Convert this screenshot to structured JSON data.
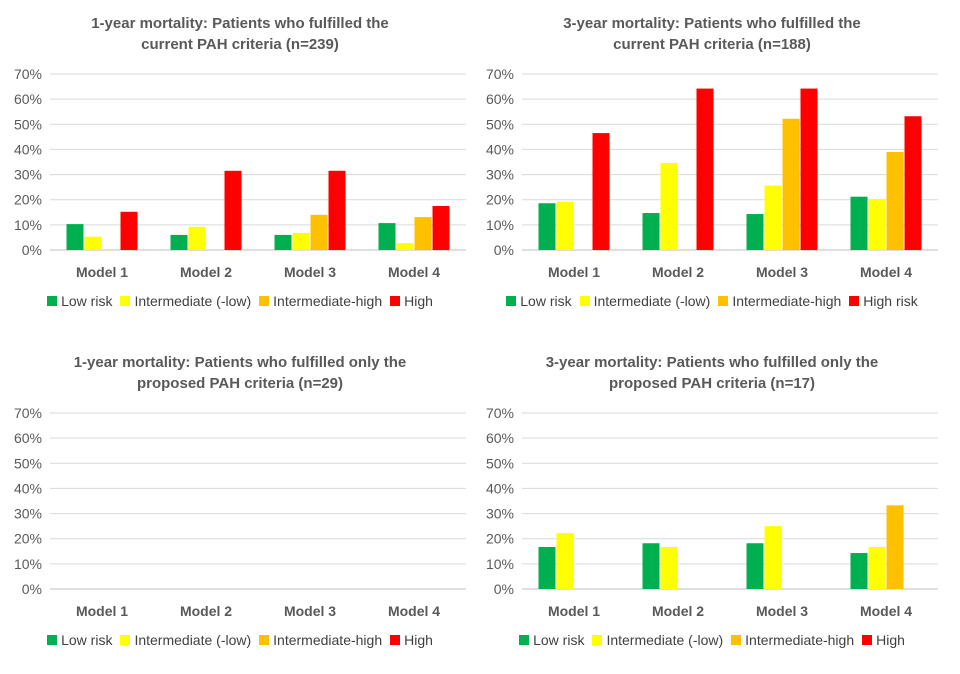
{
  "colors": {
    "low": "#00B050",
    "intermediate_low": "#FFFF00",
    "intermediate_high": "#FFC000",
    "high": "#FF0000",
    "grid": "#D9D9D9",
    "text": "#595959"
  },
  "chart_data": [
    {
      "type": "bar",
      "title": [
        "1-year mortality: Patients who fulfilled the",
        "current PAH criteria (n=239)"
      ],
      "categories": [
        "Model 1",
        "Model 2",
        "Model 3",
        "Model 4"
      ],
      "yticks": [
        "0%",
        "10%",
        "20%",
        "30%",
        "40%",
        "50%",
        "60%",
        "70%"
      ],
      "ylim": [
        0,
        70
      ],
      "series": [
        {
          "name": "Low risk",
          "color": "#00B050",
          "values": [
            10.3,
            6.0,
            6.0,
            10.7
          ]
        },
        {
          "name": "Intermediate (-low)",
          "color": "#FFFF00",
          "values": [
            5.3,
            9.2,
            6.8,
            2.7
          ]
        },
        {
          "name": "Intermediate-high",
          "color": "#FFC000",
          "values": [
            null,
            null,
            14.0,
            13.1
          ]
        },
        {
          "name": "High",
          "color": "#FF0000",
          "values": [
            15.2,
            31.5,
            31.5,
            17.5
          ]
        }
      ],
      "legend": [
        "Low risk",
        "Intermediate (-low)",
        "Intermediate-high",
        "High"
      ],
      "grid": true,
      "legend_position": "bottom"
    },
    {
      "type": "bar",
      "title": [
        "3-year mortality: Patients who fulfilled the",
        "current PAH criteria (n=188)"
      ],
      "categories": [
        "Model 1",
        "Model 2",
        "Model 3",
        "Model 4"
      ],
      "yticks": [
        "0%",
        "10%",
        "20%",
        "30%",
        "40%",
        "50%",
        "60%",
        "70%"
      ],
      "ylim": [
        0,
        70
      ],
      "series": [
        {
          "name": "Low risk",
          "color": "#00B050",
          "values": [
            18.6,
            14.7,
            14.3,
            21.2
          ]
        },
        {
          "name": "Intermediate (-low)",
          "color": "#FFFF00",
          "values": [
            19.2,
            34.6,
            25.6,
            20.2
          ]
        },
        {
          "name": "Intermediate-high",
          "color": "#FFC000",
          "values": [
            null,
            null,
            52.2,
            39.0
          ]
        },
        {
          "name": "High risk",
          "color": "#FF0000",
          "values": [
            46.5,
            64.2,
            64.2,
            53.2
          ]
        }
      ],
      "legend": [
        "Low risk",
        "Intermediate (-low)",
        "Intermediate-high",
        "High risk"
      ],
      "grid": true,
      "legend_position": "bottom"
    },
    {
      "type": "bar",
      "title": [
        "1-year mortality: Patients who fulfilled only the",
        "proposed PAH criteria (n=29)"
      ],
      "categories": [
        "Model 1",
        "Model 2",
        "Model 3",
        "Model 4"
      ],
      "yticks": [
        "0%",
        "10%",
        "20%",
        "30%",
        "40%",
        "50%",
        "60%",
        "70%"
      ],
      "ylim": [
        0,
        70
      ],
      "series": [
        {
          "name": "Low risk",
          "color": "#00B050",
          "values": [
            0,
            0,
            0,
            0
          ]
        },
        {
          "name": "Intermediate (-low)",
          "color": "#FFFF00",
          "values": [
            0,
            0,
            0,
            0
          ]
        },
        {
          "name": "Intermediate-high",
          "color": "#FFC000",
          "values": [
            null,
            null,
            0,
            0
          ]
        },
        {
          "name": "High",
          "color": "#FF0000",
          "values": [
            0,
            0,
            0,
            0
          ]
        }
      ],
      "legend": [
        "Low risk",
        "Intermediate (-low)",
        "Intermediate-high",
        "High"
      ],
      "grid": true,
      "legend_position": "bottom"
    },
    {
      "type": "bar",
      "title": [
        "3-year mortality: Patients who fulfilled only the",
        "proposed PAH criteria (n=17)"
      ],
      "categories": [
        "Model 1",
        "Model 2",
        "Model 3",
        "Model 4"
      ],
      "yticks": [
        "0%",
        "10%",
        "20%",
        "30%",
        "40%",
        "50%",
        "60%",
        "70%"
      ],
      "ylim": [
        0,
        70
      ],
      "series": [
        {
          "name": "Low risk",
          "color": "#00B050",
          "values": [
            16.7,
            18.2,
            18.2,
            14.3
          ]
        },
        {
          "name": "Intermediate (-low)",
          "color": "#FFFF00",
          "values": [
            22.2,
            16.7,
            25.0,
            16.7
          ]
        },
        {
          "name": "Intermediate-high",
          "color": "#FFC000",
          "values": [
            null,
            null,
            null,
            33.3
          ]
        },
        {
          "name": "High",
          "color": "#FF0000",
          "values": [
            null,
            null,
            null,
            null
          ]
        }
      ],
      "legend": [
        "Low risk",
        "Intermediate (-low)",
        "Intermediate-high",
        "High"
      ],
      "grid": true,
      "legend_position": "bottom"
    }
  ]
}
